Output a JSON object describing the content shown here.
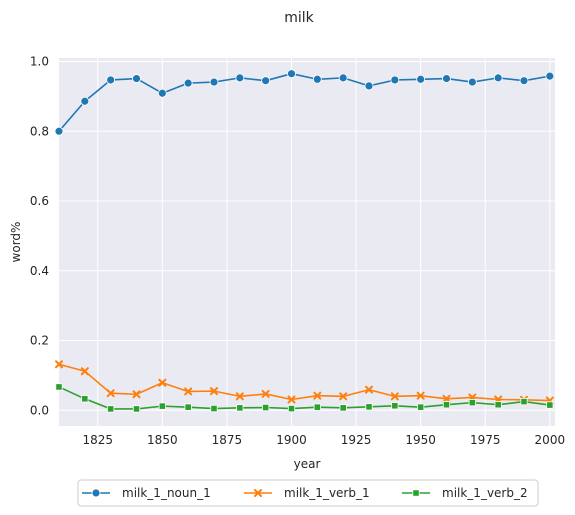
{
  "chart_data": {
    "type": "line",
    "title": "milk",
    "xlabel": "year",
    "ylabel": "word%",
    "xlim": [
      1810,
      2002
    ],
    "ylim": [
      -0.045,
      1.01
    ],
    "xticks": [
      1825,
      1850,
      1875,
      1900,
      1925,
      1950,
      1975,
      2000
    ],
    "yticks": [
      0.0,
      0.2,
      0.4,
      0.6,
      0.8,
      1.0
    ],
    "grid": true,
    "legend_position": "bottom-center",
    "x": [
      1810,
      1820,
      1830,
      1840,
      1850,
      1860,
      1870,
      1880,
      1890,
      1900,
      1910,
      1920,
      1930,
      1940,
      1950,
      1960,
      1970,
      1980,
      1990,
      2000
    ],
    "series": [
      {
        "name": "milk_1_noun_1",
        "color": "#1f77b4",
        "marker": "circle",
        "values": [
          0.8,
          0.886,
          0.947,
          0.951,
          0.909,
          0.938,
          0.941,
          0.953,
          0.945,
          0.965,
          0.949,
          0.953,
          0.93,
          0.947,
          0.949,
          0.951,
          0.941,
          0.953,
          0.945,
          0.958
        ]
      },
      {
        "name": "milk_1_verb_1",
        "color": "#ff7f0e",
        "marker": "x",
        "values": [
          0.132,
          0.112,
          0.049,
          0.046,
          0.079,
          0.054,
          0.055,
          0.04,
          0.047,
          0.031,
          0.042,
          0.04,
          0.059,
          0.04,
          0.042,
          0.033,
          0.037,
          0.031,
          0.03,
          0.028
        ]
      },
      {
        "name": "milk_1_verb_2",
        "color": "#2ca02c",
        "marker": "square",
        "values": [
          0.067,
          0.033,
          0.004,
          0.004,
          0.012,
          0.009,
          0.005,
          0.007,
          0.008,
          0.005,
          0.009,
          0.007,
          0.01,
          0.013,
          0.009,
          0.016,
          0.022,
          0.016,
          0.025,
          0.015
        ]
      }
    ]
  }
}
